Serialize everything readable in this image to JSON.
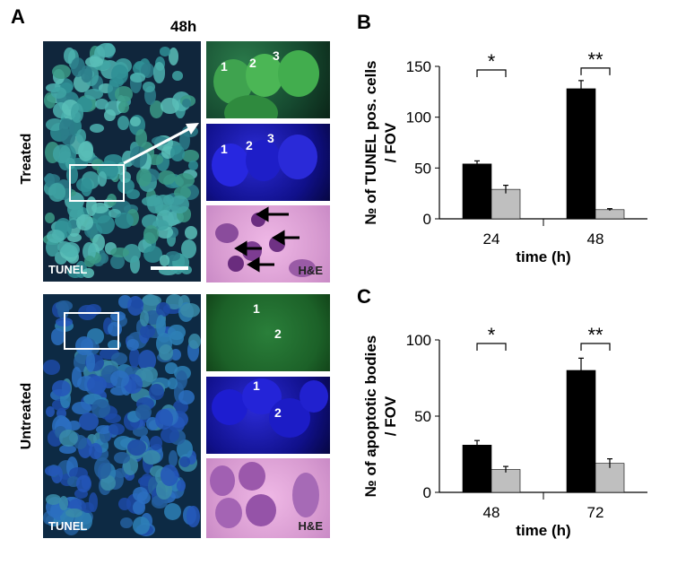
{
  "panel_a": {
    "letter": "A",
    "timepoint": "48h",
    "row_treated": "Treated",
    "row_untreated": "Untreated",
    "tunel_label": "TUNEL",
    "he_label": "H&E",
    "treated_numbers": [
      "1",
      "2",
      "3"
    ],
    "untreated_numbers": [
      "1",
      "2"
    ]
  },
  "panel_b": {
    "letter": "B"
  },
  "panel_c": {
    "letter": "C"
  },
  "chart_data": [
    {
      "type": "bar",
      "categories": [
        "24",
        "48"
      ],
      "series": [
        {
          "color": "#000000",
          "values": [
            54,
            128
          ],
          "errors": [
            3,
            8
          ]
        },
        {
          "color": "#bfbfbf",
          "values": [
            29,
            9
          ],
          "errors": [
            4,
            1
          ]
        }
      ],
      "xlabel": "time (h)",
      "ylabel": "№ of TUNEL pos. cells / FOV",
      "ylim": [
        0,
        150
      ],
      "yticks": [
        0,
        50,
        100,
        150
      ],
      "significance": [
        "*",
        "**"
      ]
    },
    {
      "type": "bar",
      "categories": [
        "48",
        "72"
      ],
      "series": [
        {
          "color": "#000000",
          "values": [
            31,
            80
          ],
          "errors": [
            3,
            8
          ]
        },
        {
          "color": "#bfbfbf",
          "values": [
            15,
            19
          ],
          "errors": [
            2,
            3
          ]
        }
      ],
      "xlabel": "time (h)",
      "ylabel": "№ of apoptotic bodies / FOV",
      "ylim": [
        0,
        100
      ],
      "yticks": [
        0,
        50,
        100
      ],
      "significance": [
        "*",
        "**"
      ]
    }
  ]
}
